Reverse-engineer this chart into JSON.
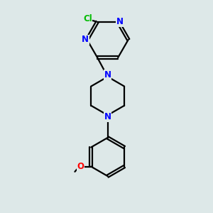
{
  "bg_color": "#dde8e8",
  "bond_color": "#000000",
  "N_color": "#0000ff",
  "Cl_color": "#00bb00",
  "O_color": "#ff0000",
  "line_width": 1.6,
  "font_size": 8.5,
  "fig_w": 3.0,
  "fig_h": 3.0,
  "dpi": 100,
  "xlim": [
    2.5,
    7.5
  ],
  "ylim": [
    0.5,
    9.5
  ]
}
